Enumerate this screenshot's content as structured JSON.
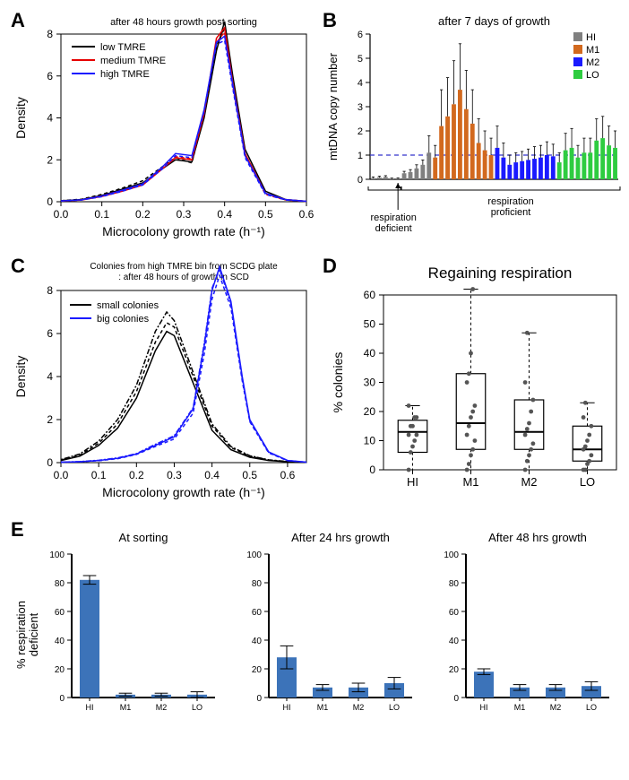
{
  "panelA": {
    "letter": "A",
    "title": "after 48 hours growth post sorting",
    "xlabel": "Microcolony growth rate (h⁻¹)",
    "ylabel": "Density",
    "xlim": [
      0.0,
      0.6
    ],
    "xtick_step": 0.1,
    "ylim": [
      0,
      8
    ],
    "ytick_step": 2,
    "legend": [
      {
        "label": "low TMRE",
        "color": "#000000"
      },
      {
        "label": "medium TMRE",
        "color": "#e60000"
      },
      {
        "label": "high TMRE",
        "color": "#1a1aff"
      }
    ],
    "series": [
      {
        "color": "#000000",
        "dash": "",
        "x": [
          0.0,
          0.05,
          0.1,
          0.15,
          0.2,
          0.25,
          0.28,
          0.32,
          0.35,
          0.38,
          0.4,
          0.42,
          0.45,
          0.5,
          0.55,
          0.6
        ],
        "y": [
          0.05,
          0.1,
          0.3,
          0.6,
          0.9,
          1.6,
          2.0,
          1.9,
          4.0,
          7.2,
          8.6,
          6.0,
          2.5,
          0.5,
          0.1,
          0.02
        ]
      },
      {
        "color": "#000000",
        "dash": "4,3",
        "x": [
          0.0,
          0.05,
          0.1,
          0.15,
          0.2,
          0.25,
          0.28,
          0.32,
          0.35,
          0.38,
          0.4,
          0.42,
          0.45,
          0.5,
          0.55,
          0.6
        ],
        "y": [
          0.05,
          0.12,
          0.35,
          0.65,
          1.0,
          1.7,
          2.1,
          1.85,
          4.2,
          7.4,
          8.3,
          5.8,
          2.3,
          0.4,
          0.08,
          0.02
        ]
      },
      {
        "color": "#e60000",
        "dash": "",
        "x": [
          0.0,
          0.05,
          0.1,
          0.15,
          0.2,
          0.25,
          0.28,
          0.32,
          0.35,
          0.38,
          0.4,
          0.42,
          0.45,
          0.5,
          0.55,
          0.6
        ],
        "y": [
          0.03,
          0.08,
          0.25,
          0.5,
          0.8,
          1.6,
          2.1,
          2.0,
          4.2,
          7.8,
          8.3,
          5.7,
          2.3,
          0.4,
          0.1,
          0.02
        ]
      },
      {
        "color": "#e60000",
        "dash": "4,3",
        "x": [
          0.0,
          0.05,
          0.1,
          0.15,
          0.2,
          0.25,
          0.28,
          0.32,
          0.35,
          0.38,
          0.4,
          0.42,
          0.45,
          0.5,
          0.55,
          0.6
        ],
        "y": [
          0.03,
          0.09,
          0.28,
          0.55,
          0.85,
          1.65,
          2.15,
          2.05,
          4.3,
          7.6,
          8.1,
          5.5,
          2.2,
          0.35,
          0.08,
          0.02
        ]
      },
      {
        "color": "#1a1aff",
        "dash": "",
        "x": [
          0.0,
          0.05,
          0.1,
          0.15,
          0.2,
          0.25,
          0.28,
          0.32,
          0.35,
          0.38,
          0.4,
          0.42,
          0.45,
          0.5,
          0.55,
          0.6
        ],
        "y": [
          0.04,
          0.09,
          0.27,
          0.55,
          0.85,
          1.7,
          2.3,
          2.2,
          4.4,
          7.6,
          7.9,
          5.6,
          2.2,
          0.4,
          0.1,
          0.02
        ]
      },
      {
        "color": "#1a1aff",
        "dash": "4,3",
        "x": [
          0.0,
          0.05,
          0.1,
          0.15,
          0.2,
          0.25,
          0.28,
          0.32,
          0.35,
          0.38,
          0.4,
          0.42,
          0.45,
          0.5,
          0.55,
          0.6
        ],
        "y": [
          0.04,
          0.08,
          0.24,
          0.5,
          0.8,
          1.6,
          2.2,
          2.1,
          4.3,
          7.5,
          7.7,
          5.4,
          2.1,
          0.35,
          0.08,
          0.02
        ]
      }
    ]
  },
  "panelB": {
    "letter": "B",
    "title": "after 7 days of growth",
    "ylabel": "mtDNA copy number",
    "ylim": [
      0,
      6
    ],
    "ytick_step": 1,
    "ref_line": 1,
    "ref_color": "#3333cc",
    "annot1": {
      "text": "respiration\ndeficient",
      "arrow_target_idx": 4
    },
    "annot2": "respiration\nproficient",
    "legend": [
      {
        "label": "HI",
        "color": "#808080"
      },
      {
        "label": "M1",
        "color": "#d2691e"
      },
      {
        "label": "M2",
        "color": "#1a1aff"
      },
      {
        "label": "LO",
        "color": "#2ecc40"
      }
    ],
    "bars": [
      {
        "v": 0.05,
        "e": 0.05,
        "c": "#808080"
      },
      {
        "v": 0.08,
        "e": 0.05,
        "c": "#808080"
      },
      {
        "v": 0.1,
        "e": 0.05,
        "c": "#808080"
      },
      {
        "v": 0.02,
        "e": 0.03,
        "c": "#808080"
      },
      {
        "v": 0.03,
        "e": 0.03,
        "c": "#808080"
      },
      {
        "v": 0.25,
        "e": 0.08,
        "c": "#808080"
      },
      {
        "v": 0.3,
        "e": 0.1,
        "c": "#808080"
      },
      {
        "v": 0.45,
        "e": 0.15,
        "c": "#808080"
      },
      {
        "v": 0.6,
        "e": 0.2,
        "c": "#808080"
      },
      {
        "v": 1.1,
        "e": 0.7,
        "c": "#808080"
      },
      {
        "v": 0.9,
        "e": 0.5,
        "c": "#d2691e"
      },
      {
        "v": 2.2,
        "e": 1.5,
        "c": "#d2691e"
      },
      {
        "v": 2.6,
        "e": 1.6,
        "c": "#d2691e"
      },
      {
        "v": 3.1,
        "e": 1.8,
        "c": "#d2691e"
      },
      {
        "v": 3.7,
        "e": 1.9,
        "c": "#d2691e"
      },
      {
        "v": 2.9,
        "e": 1.6,
        "c": "#d2691e"
      },
      {
        "v": 2.3,
        "e": 1.4,
        "c": "#d2691e"
      },
      {
        "v": 1.5,
        "e": 1.0,
        "c": "#d2691e"
      },
      {
        "v": 1.2,
        "e": 0.8,
        "c": "#d2691e"
      },
      {
        "v": 1.0,
        "e": 0.7,
        "c": "#d2691e"
      },
      {
        "v": 1.3,
        "e": 0.9,
        "c": "#1a1aff"
      },
      {
        "v": 0.9,
        "e": 0.6,
        "c": "#1a1aff"
      },
      {
        "v": 0.6,
        "e": 0.4,
        "c": "#1a1aff"
      },
      {
        "v": 0.7,
        "e": 0.4,
        "c": "#1a1aff"
      },
      {
        "v": 0.75,
        "e": 0.4,
        "c": "#1a1aff"
      },
      {
        "v": 0.8,
        "e": 0.45,
        "c": "#1a1aff"
      },
      {
        "v": 0.85,
        "e": 0.5,
        "c": "#1a1aff"
      },
      {
        "v": 0.9,
        "e": 0.5,
        "c": "#1a1aff"
      },
      {
        "v": 1.0,
        "e": 0.55,
        "c": "#1a1aff"
      },
      {
        "v": 0.95,
        "e": 0.5,
        "c": "#1a1aff"
      },
      {
        "v": 0.7,
        "e": 0.4,
        "c": "#2ecc40"
      },
      {
        "v": 1.2,
        "e": 0.7,
        "c": "#2ecc40"
      },
      {
        "v": 1.3,
        "e": 0.8,
        "c": "#2ecc40"
      },
      {
        "v": 0.9,
        "e": 0.5,
        "c": "#2ecc40"
      },
      {
        "v": 1.1,
        "e": 0.6,
        "c": "#2ecc40"
      },
      {
        "v": 1.1,
        "e": 0.6,
        "c": "#2ecc40"
      },
      {
        "v": 1.6,
        "e": 0.9,
        "c": "#2ecc40"
      },
      {
        "v": 1.7,
        "e": 0.9,
        "c": "#2ecc40"
      },
      {
        "v": 1.4,
        "e": 0.8,
        "c": "#2ecc40"
      },
      {
        "v": 1.3,
        "e": 0.7,
        "c": "#2ecc40"
      }
    ]
  },
  "panelC": {
    "letter": "C",
    "title_line1": "Colonies from high TMRE bin from SCDG plate",
    "title_line2": ": after 48 hours of growth in SCD",
    "xlabel": "Microcolony growth rate (h⁻¹)",
    "ylabel": "Density",
    "xlim": [
      0.0,
      0.65
    ],
    "xtick_step": 0.1,
    "ylim": [
      0,
      8
    ],
    "ytick_step": 2,
    "legend": [
      {
        "label": "small colonies",
        "color": "#000000"
      },
      {
        "label": "big colonies",
        "color": "#1a1aff"
      }
    ],
    "series": [
      {
        "color": "#000000",
        "dash": "",
        "x": [
          0.0,
          0.05,
          0.1,
          0.15,
          0.2,
          0.25,
          0.28,
          0.3,
          0.35,
          0.4,
          0.45,
          0.5,
          0.55,
          0.6,
          0.65
        ],
        "y": [
          0.1,
          0.3,
          0.8,
          1.6,
          3.0,
          5.2,
          6.1,
          5.9,
          3.7,
          1.5,
          0.6,
          0.25,
          0.1,
          0.04,
          0.02
        ]
      },
      {
        "color": "#000000",
        "dash": "4,3",
        "x": [
          0.0,
          0.05,
          0.1,
          0.15,
          0.2,
          0.25,
          0.28,
          0.3,
          0.35,
          0.4,
          0.45,
          0.5,
          0.55,
          0.6,
          0.65
        ],
        "y": [
          0.12,
          0.35,
          0.9,
          1.8,
          3.3,
          5.6,
          6.5,
          6.3,
          4.0,
          1.7,
          0.7,
          0.3,
          0.12,
          0.05,
          0.02
        ]
      },
      {
        "color": "#000000",
        "dash": "2,2,6,2",
        "x": [
          0.0,
          0.05,
          0.1,
          0.15,
          0.2,
          0.25,
          0.28,
          0.3,
          0.35,
          0.4,
          0.45,
          0.5,
          0.55,
          0.6,
          0.65
        ],
        "y": [
          0.14,
          0.4,
          1.0,
          2.0,
          3.6,
          6.1,
          7.0,
          6.6,
          4.2,
          1.8,
          0.75,
          0.32,
          0.13,
          0.05,
          0.02
        ]
      },
      {
        "color": "#1a1aff",
        "dash": "",
        "x": [
          0.0,
          0.05,
          0.1,
          0.15,
          0.2,
          0.25,
          0.3,
          0.35,
          0.38,
          0.4,
          0.42,
          0.45,
          0.48,
          0.5,
          0.55,
          0.6,
          0.65
        ],
        "y": [
          0.02,
          0.04,
          0.1,
          0.2,
          0.4,
          0.8,
          1.2,
          2.5,
          5.5,
          8.0,
          9.1,
          7.5,
          4.0,
          2.0,
          0.5,
          0.1,
          0.02
        ]
      },
      {
        "color": "#1a1aff",
        "dash": "4,3",
        "x": [
          0.0,
          0.05,
          0.1,
          0.15,
          0.2,
          0.25,
          0.3,
          0.35,
          0.38,
          0.4,
          0.42,
          0.45,
          0.48,
          0.5,
          0.55,
          0.6,
          0.65
        ],
        "y": [
          0.02,
          0.04,
          0.09,
          0.18,
          0.38,
          0.75,
          1.1,
          2.3,
          5.1,
          7.6,
          8.7,
          7.2,
          3.8,
          1.9,
          0.45,
          0.09,
          0.02
        ]
      },
      {
        "color": "#1a1aff",
        "dash": "2,2,6,2",
        "x": [
          0.0,
          0.05,
          0.1,
          0.15,
          0.2,
          0.25,
          0.3,
          0.35,
          0.38,
          0.4,
          0.42,
          0.45,
          0.48,
          0.5,
          0.55,
          0.6,
          0.65
        ],
        "y": [
          0.02,
          0.05,
          0.11,
          0.22,
          0.42,
          0.85,
          1.25,
          2.55,
          5.6,
          8.1,
          9.0,
          7.4,
          3.9,
          1.95,
          0.48,
          0.1,
          0.02
        ]
      }
    ]
  },
  "panelD": {
    "letter": "D",
    "title": "Regaining respiration",
    "ylabel": "% colonies",
    "ylim": [
      0,
      60
    ],
    "ytick_step": 10,
    "categories": [
      "HI",
      "M1",
      "M2",
      "LO"
    ],
    "boxes": [
      {
        "min": 0,
        "q1": 6,
        "med": 13,
        "q3": 17,
        "max": 22,
        "out": [],
        "pts": [
          0,
          6,
          8,
          10,
          12,
          12,
          15,
          15,
          18,
          18,
          22
        ]
      },
      {
        "min": 0,
        "q1": 7,
        "med": 16,
        "q3": 33,
        "max": 62,
        "out": [
          62
        ],
        "pts": [
          0,
          2,
          5,
          7,
          10,
          12,
          15,
          18,
          20,
          22,
          30,
          33,
          40,
          62
        ]
      },
      {
        "min": 0,
        "q1": 7,
        "med": 13,
        "q3": 24,
        "max": 47,
        "out": [
          47
        ],
        "pts": [
          0,
          3,
          5,
          7,
          9,
          12,
          14,
          16,
          20,
          24,
          30,
          47
        ]
      },
      {
        "min": 0,
        "q1": 3,
        "med": 7,
        "q3": 15,
        "max": 23,
        "out": [],
        "pts": [
          0,
          0,
          2,
          3,
          5,
          7,
          8,
          10,
          12,
          15,
          18,
          23
        ]
      }
    ]
  },
  "panelE": {
    "letter": "E",
    "ylabel": "% respiration\ndeficient",
    "ylim": [
      0,
      100
    ],
    "ytick_step": 20,
    "categories": [
      "HI",
      "M1",
      "M2",
      "LO"
    ],
    "bar_color": "#3c73b9",
    "sub": [
      {
        "title": "At sorting",
        "vals": [
          {
            "v": 82,
            "e": 3
          },
          {
            "v": 2,
            "e": 1
          },
          {
            "v": 2,
            "e": 1
          },
          {
            "v": 2,
            "e": 2
          }
        ]
      },
      {
        "title": "After 24 hrs growth",
        "vals": [
          {
            "v": 28,
            "e": 8
          },
          {
            "v": 7,
            "e": 2
          },
          {
            "v": 7,
            "e": 3
          },
          {
            "v": 10,
            "e": 4
          }
        ]
      },
      {
        "title": "After 48 hrs growth",
        "vals": [
          {
            "v": 18,
            "e": 2
          },
          {
            "v": 7,
            "e": 2
          },
          {
            "v": 7,
            "e": 2
          },
          {
            "v": 8,
            "e": 3
          }
        ]
      }
    ]
  }
}
